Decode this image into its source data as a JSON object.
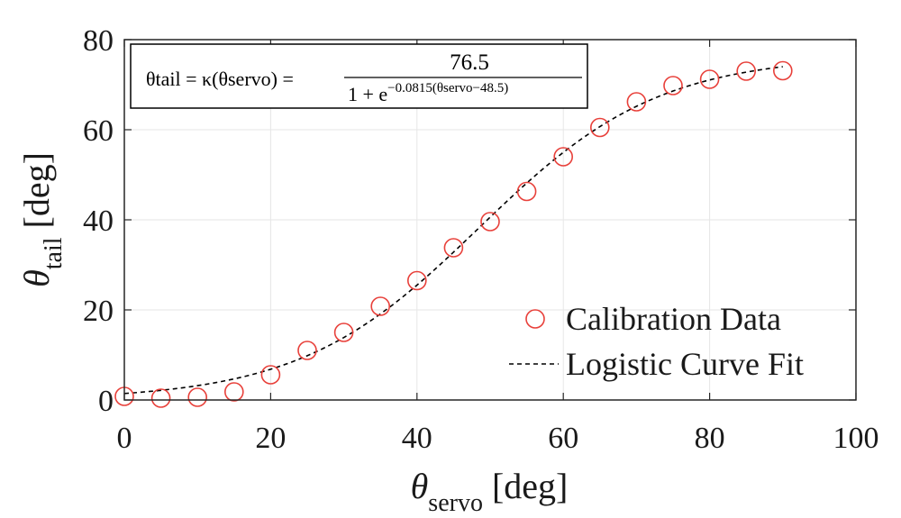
{
  "chart_data": {
    "type": "scatter",
    "xlabel": {
      "symbol": "θ",
      "subscript": "servo",
      "unit": "[deg]"
    },
    "ylabel": {
      "symbol": "θ",
      "subscript": "tail",
      "unit": "[deg]"
    },
    "xlim": [
      0,
      100
    ],
    "ylim": [
      0,
      80
    ],
    "xticks": [
      0,
      20,
      40,
      60,
      80,
      100
    ],
    "yticks": [
      0,
      20,
      40,
      60,
      80
    ],
    "grid": true,
    "legend_placement": "bottom-right",
    "colors": {
      "markers": "#e8403a",
      "fit": "#000000",
      "grid": "#e6e6e6",
      "axes": "#262626"
    },
    "series": [
      {
        "name": "Calibration Data",
        "kind": "markers",
        "marker": "open-circle",
        "x": [
          0,
          5,
          10,
          15,
          20,
          25,
          30,
          35,
          40,
          45,
          50,
          55,
          60,
          65,
          70,
          75,
          80,
          85,
          90
        ],
        "y": [
          0.8,
          0.4,
          0.6,
          1.8,
          5.6,
          11.0,
          15.0,
          20.8,
          26.5,
          33.8,
          39.6,
          46.3,
          54.0,
          60.5,
          66.2,
          69.8,
          71.2,
          73.0,
          73.1
        ]
      },
      {
        "name": "Logistic Curve Fit",
        "kind": "dashed-line",
        "model": "logistic",
        "params": {
          "L": 76.5,
          "k": 0.0815,
          "x0": 48.5
        },
        "x_range": [
          0,
          90
        ]
      }
    ],
    "annotation": {
      "lhs": "θtail = κ(θservo) =",
      "numerator": "76.5",
      "denominator_base": "1 + e",
      "exponent": "−0.0815(θservo−48.5)"
    }
  }
}
